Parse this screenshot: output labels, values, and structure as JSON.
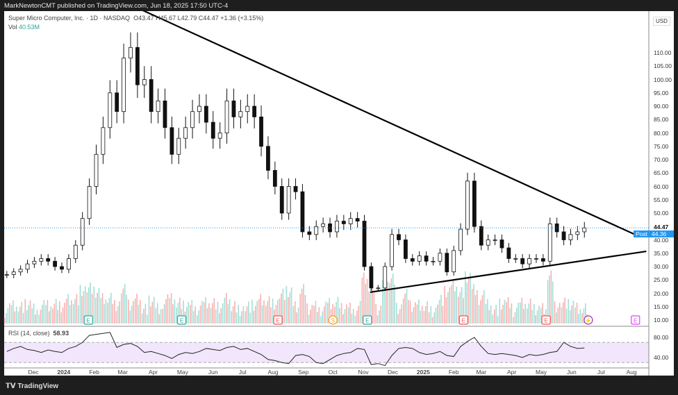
{
  "header": {
    "published": "MarkNewtonCMT published on TradingView.com, Jun 18, 2025 17:50 UTC-4"
  },
  "legend": {
    "symbol": "Super Micro Computer, Inc. · 1D · NASDAQ",
    "open": "O43.47",
    "high": "H45.67",
    "low": "L42.79",
    "close": "C44.47",
    "change": "+1.36 (+3.15%)",
    "vol_label": "Vol",
    "vol_value": "40.53M"
  },
  "rsi": {
    "label": "RSI (14, close)",
    "value": "58.93"
  },
  "axis": {
    "currency": "USD",
    "last_price": "44.47",
    "post_label": "Post",
    "post_price": "44.36",
    "colors": {
      "post": "#2196f3",
      "up": "#26a69a",
      "down": "#ef5350"
    }
  },
  "footer": {
    "brand": "TradingView"
  },
  "chart_data": {
    "type": "candlestick",
    "title": "Super Micro Computer, Inc. · 1D · NASDAQ",
    "ylabel": "USD",
    "ylim": [
      10,
      112
    ],
    "yticks": [
      "110.00",
      "105.00",
      "100.00",
      "95.00",
      "90.00",
      "85.00",
      "80.00",
      "75.00",
      "70.00",
      "65.00",
      "60.00",
      "55.00",
      "50.00",
      "40.00",
      "35.00",
      "30.00",
      "25.00",
      "20.00",
      "15.00",
      "10.00"
    ],
    "ytick_values": [
      110,
      105,
      100,
      95,
      90,
      85,
      80,
      75,
      70,
      65,
      60,
      55,
      50,
      40,
      35,
      30,
      25,
      20,
      15,
      10
    ],
    "xticks": [
      {
        "label": "Dec",
        "date": "2023-12-01"
      },
      {
        "label": "2024",
        "date": "2024-01-01"
      },
      {
        "label": "Feb",
        "date": "2024-02-01"
      },
      {
        "label": "Mar",
        "date": "2024-03-01"
      },
      {
        "label": "Apr",
        "date": "2024-04-01"
      },
      {
        "label": "May",
        "date": "2024-05-01"
      },
      {
        "label": "Jun",
        "date": "2024-06-01"
      },
      {
        "label": "Jul",
        "date": "2024-07-01"
      },
      {
        "label": "Aug",
        "date": "2024-08-01"
      },
      {
        "label": "Sep",
        "date": "2024-09-01"
      },
      {
        "label": "Oct",
        "date": "2024-10-01"
      },
      {
        "label": "Nov",
        "date": "2024-11-01"
      },
      {
        "label": "Dec",
        "date": "2024-12-01"
      },
      {
        "label": "2025",
        "date": "2025-01-01"
      },
      {
        "label": "Feb",
        "date": "2025-02-01"
      },
      {
        "label": "Mar",
        "date": "2025-03-01"
      },
      {
        "label": "Apr",
        "date": "2025-04-01"
      },
      {
        "label": "May",
        "date": "2025-05-01"
      },
      {
        "label": "Jun",
        "date": "2025-06-01"
      },
      {
        "label": "Jul",
        "date": "2025-07-01"
      },
      {
        "label": "Aug",
        "date": "2025-08-01"
      }
    ],
    "series_start": "2023-11-04",
    "series_step_days": 7,
    "close": [
      27,
      28,
      29,
      31,
      32,
      33,
      32,
      30,
      29,
      33,
      38,
      48,
      60,
      72,
      82,
      95,
      88,
      108,
      112,
      98,
      100,
      88,
      92,
      82,
      72,
      78,
      82,
      88,
      90,
      84,
      78,
      80,
      92,
      86,
      88,
      90,
      86,
      75,
      66,
      60,
      50,
      60,
      58,
      43,
      42,
      45,
      46,
      43,
      47,
      46,
      48,
      47,
      30,
      22,
      22,
      30,
      42,
      40,
      33,
      32,
      34,
      32,
      32,
      35,
      28,
      36,
      44,
      62,
      45,
      38,
      40,
      40,
      37,
      33,
      33,
      31,
      33,
      33,
      32,
      46,
      43,
      40,
      42,
      43,
      44.47
    ],
    "rsi_values": [
      52,
      58,
      62,
      56,
      54,
      50,
      55,
      52,
      50,
      58,
      62,
      70,
      84,
      86,
      88,
      90,
      60,
      66,
      68,
      62,
      50,
      52,
      48,
      44,
      38,
      46,
      50,
      48,
      52,
      58,
      56,
      54,
      60,
      62,
      56,
      58,
      52,
      46,
      36,
      34,
      30,
      28,
      44,
      46,
      42,
      30,
      28,
      36,
      44,
      48,
      50,
      58,
      56,
      26,
      28,
      24,
      44,
      58,
      60,
      58,
      50,
      46,
      48,
      52,
      44,
      42,
      62,
      72,
      80,
      62,
      48,
      46,
      48,
      46,
      44,
      40,
      46,
      44,
      46,
      50,
      52,
      70,
      62,
      58,
      58.93
    ],
    "rsi_bands": [
      70,
      30
    ],
    "rsi_ticks": [
      "80.00",
      "40.00"
    ],
    "rsi_tick_values": [
      80,
      40
    ],
    "trendlines": [
      {
        "name": "upper-resistance",
        "from": {
          "date": "2024-03-17",
          "price": 126.6
        },
        "to": {
          "date": "2025-08-05",
          "price": 41.9
        }
      },
      {
        "name": "lower-support",
        "from": {
          "date": "2024-11-08",
          "price": 20.4
        },
        "to": {
          "date": "2025-08-16",
          "price": 35.7
        }
      }
    ],
    "events": [
      {
        "type": "E",
        "date": "2024-01-26",
        "kind": "earnings-beat"
      },
      {
        "type": "E",
        "date": "2024-04-30",
        "kind": "earnings-beat"
      },
      {
        "type": "E",
        "date": "2024-08-06",
        "kind": "earnings-miss"
      },
      {
        "type": "S",
        "date": "2024-10-01",
        "kind": "split"
      },
      {
        "type": "E",
        "date": "2024-11-05",
        "kind": "earnings-beat"
      },
      {
        "type": "E",
        "date": "2025-02-11",
        "kind": "earnings-miss"
      },
      {
        "type": "E",
        "date": "2025-05-06",
        "kind": "earnings-miss"
      },
      {
        "type": "⚡",
        "date": "2025-06-18",
        "kind": "news"
      },
      {
        "type": "E",
        "date": "2025-08-05",
        "kind": "upcoming"
      }
    ]
  }
}
